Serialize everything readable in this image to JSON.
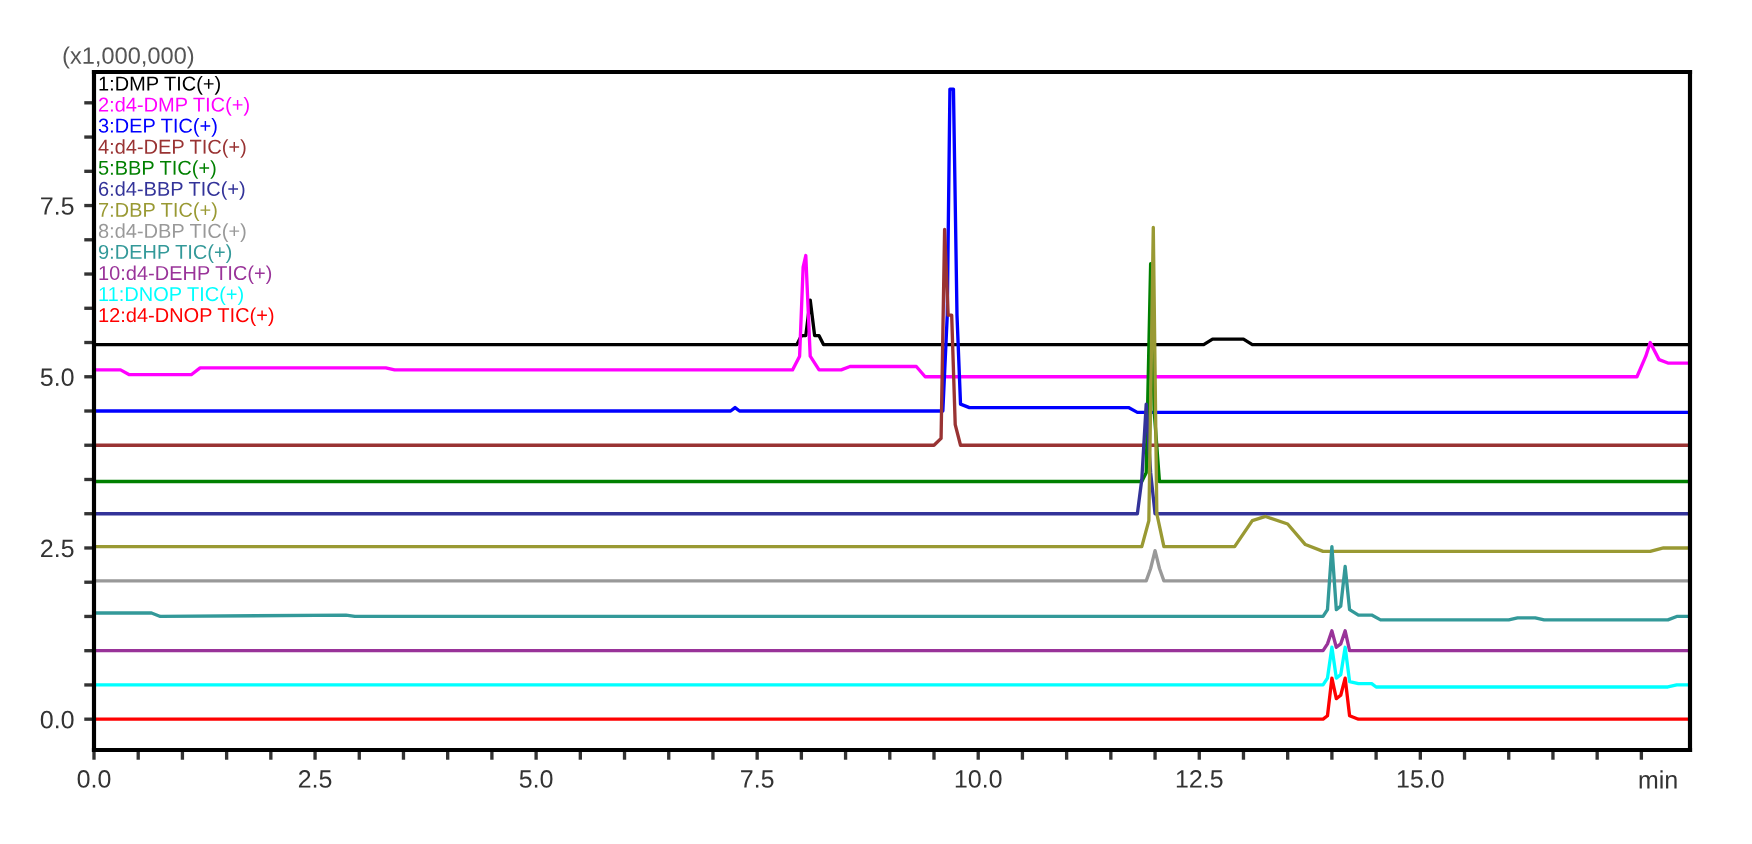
{
  "chart_data": {
    "type": "line",
    "xlabel": "min",
    "annotations": [
      "(x1,000,000)"
    ],
    "xlim": [
      0,
      18.05
    ],
    "ylim": [
      -0.45,
      9.45
    ],
    "xticks": [
      {
        "value": 0,
        "label": "0.0"
      },
      {
        "value": 0.5,
        "label": null
      },
      {
        "value": 1,
        "label": null
      },
      {
        "value": 1.5,
        "label": null
      },
      {
        "value": 2,
        "label": null
      },
      {
        "value": 2.5,
        "label": "2.5"
      },
      {
        "value": 3,
        "label": null
      },
      {
        "value": 3.5,
        "label": null
      },
      {
        "value": 4,
        "label": null
      },
      {
        "value": 4.5,
        "label": null
      },
      {
        "value": 5,
        "label": "5.0"
      },
      {
        "value": 5.5,
        "label": null
      },
      {
        "value": 6,
        "label": null
      },
      {
        "value": 6.5,
        "label": null
      },
      {
        "value": 7,
        "label": null
      },
      {
        "value": 7.5,
        "label": "7.5"
      },
      {
        "value": 8,
        "label": null
      },
      {
        "value": 8.5,
        "label": null
      },
      {
        "value": 9,
        "label": null
      },
      {
        "value": 9.5,
        "label": null
      },
      {
        "value": 10,
        "label": "10.0"
      },
      {
        "value": 10.5,
        "label": null
      },
      {
        "value": 11,
        "label": null
      },
      {
        "value": 11.5,
        "label": null
      },
      {
        "value": 12,
        "label": null
      },
      {
        "value": 12.5,
        "label": "12.5"
      },
      {
        "value": 13,
        "label": null
      },
      {
        "value": 13.5,
        "label": null
      },
      {
        "value": 14,
        "label": null
      },
      {
        "value": 14.5,
        "label": null
      },
      {
        "value": 15,
        "label": "15.0"
      },
      {
        "value": 15.5,
        "label": null
      },
      {
        "value": 16,
        "label": null
      },
      {
        "value": 16.5,
        "label": null
      },
      {
        "value": 17,
        "label": null
      },
      {
        "value": 17.5,
        "label": null
      }
    ],
    "yticks": [
      {
        "value": 0,
        "label": "0.0"
      },
      {
        "value": 0.5,
        "label": null
      },
      {
        "value": 1,
        "label": null
      },
      {
        "value": 1.5,
        "label": null
      },
      {
        "value": 2,
        "label": null
      },
      {
        "value": 2.5,
        "label": "2.5"
      },
      {
        "value": 3,
        "label": null
      },
      {
        "value": 3.5,
        "label": null
      },
      {
        "value": 4,
        "label": null
      },
      {
        "value": 4.5,
        "label": null
      },
      {
        "value": 5,
        "label": "5.0"
      },
      {
        "value": 5.5,
        "label": null
      },
      {
        "value": 6,
        "label": null
      },
      {
        "value": 6.5,
        "label": null
      },
      {
        "value": 7,
        "label": null
      },
      {
        "value": 7.5,
        "label": "7.5"
      },
      {
        "value": 8,
        "label": null
      },
      {
        "value": 8.5,
        "label": null
      },
      {
        "value": 9,
        "label": null
      }
    ],
    "grid": false,
    "legend": "top left",
    "marker": "none",
    "line_style": "solid",
    "series": [
      {
        "name": "1:DMP TIC(+)",
        "color": "#000000",
        "x": [
          0,
          7.95,
          8.0,
          8.05,
          8.1,
          8.15,
          8.2,
          8.25,
          12.55,
          12.65,
          13.0,
          13.1,
          18.05
        ],
        "values": [
          5.47,
          5.47,
          5.6,
          5.6,
          6.12,
          5.6,
          5.6,
          5.47,
          5.47,
          5.55,
          5.55,
          5.47,
          5.47
        ]
      },
      {
        "name": "2:d4-DMP TIC(+)",
        "color": "#ff00ff",
        "x": [
          0,
          0.3,
          0.4,
          1.1,
          1.2,
          3.3,
          3.4,
          7.9,
          7.98,
          8.02,
          8.05,
          8.1,
          8.2,
          8.45,
          8.55,
          9.3,
          9.4,
          17.45,
          17.55,
          17.6,
          17.7,
          17.8,
          18.05
        ],
        "values": [
          5.1,
          5.1,
          5.03,
          5.03,
          5.13,
          5.13,
          5.1,
          5.1,
          5.3,
          6.6,
          6.77,
          5.3,
          5.1,
          5.1,
          5.15,
          5.15,
          5.0,
          5.0,
          5.3,
          5.5,
          5.25,
          5.2,
          5.2
        ]
      },
      {
        "name": "3:DEP TIC(+)",
        "color": "#0000ff",
        "x": [
          0,
          7.2,
          7.25,
          7.3,
          9.6,
          9.65,
          9.68,
          9.72,
          9.76,
          9.8,
          9.9,
          11.7,
          11.8,
          18.05
        ],
        "values": [
          4.5,
          4.5,
          4.55,
          4.5,
          4.5,
          5.9,
          9.2,
          9.2,
          5.9,
          4.6,
          4.55,
          4.55,
          4.48,
          4.48
        ]
      },
      {
        "name": "4:d4-DEP TIC(+)",
        "color": "#993333",
        "x": [
          0,
          9.5,
          9.58,
          9.62,
          9.66,
          9.7,
          9.74,
          9.8,
          18.05
        ],
        "values": [
          4.0,
          4.0,
          4.1,
          7.15,
          5.9,
          5.9,
          4.3,
          4.0,
          4.0
        ]
      },
      {
        "name": "5:BBP TIC(+)",
        "color": "#008000",
        "x": [
          0,
          11.85,
          11.9,
          11.95,
          11.99,
          12.05,
          18.05
        ],
        "values": [
          3.47,
          3.47,
          3.6,
          6.65,
          4.5,
          3.47,
          3.47
        ]
      },
      {
        "name": "6:d4-BBP TIC(+)",
        "color": "#333399",
        "x": [
          0,
          11.8,
          11.85,
          11.9,
          11.95,
          12.0,
          18.05
        ],
        "values": [
          3.0,
          3.0,
          3.5,
          4.6,
          3.6,
          3.0,
          3.0
        ]
      },
      {
        "name": "7:DBP TIC(+)",
        "color": "#999933",
        "x": [
          0,
          11.85,
          11.93,
          11.98,
          12.02,
          12.1,
          12.9,
          13.1,
          13.25,
          13.5,
          13.7,
          13.9,
          17.6,
          17.75,
          18.05
        ],
        "values": [
          2.52,
          2.52,
          2.9,
          7.18,
          3.0,
          2.52,
          2.52,
          2.9,
          2.96,
          2.85,
          2.55,
          2.45,
          2.45,
          2.5,
          2.5
        ]
      },
      {
        "name": "8:d4-DBP TIC(+)",
        "color": "#999999",
        "x": [
          0,
          11.9,
          11.95,
          12.0,
          12.05,
          12.1,
          18.05
        ],
        "values": [
          2.02,
          2.02,
          2.2,
          2.46,
          2.2,
          2.02,
          2.02
        ]
      },
      {
        "name": "9:DEHP TIC(+)",
        "color": "#339999",
        "x": [
          0,
          0.65,
          0.75,
          2.85,
          2.95,
          13.9,
          13.95,
          14.0,
          14.05,
          14.1,
          14.15,
          14.2,
          14.3,
          14.45,
          14.55,
          16.0,
          16.1,
          16.3,
          16.4,
          17.8,
          17.9,
          18.05
        ],
        "values": [
          1.55,
          1.55,
          1.5,
          1.52,
          1.5,
          1.5,
          1.6,
          2.52,
          1.6,
          1.65,
          2.23,
          1.6,
          1.52,
          1.52,
          1.45,
          1.45,
          1.48,
          1.48,
          1.45,
          1.45,
          1.5,
          1.5
        ]
      },
      {
        "name": "10:d4-DEHP TIC(+)",
        "color": "#993399",
        "x": [
          0,
          13.9,
          13.95,
          14.0,
          14.05,
          14.1,
          14.15,
          14.2,
          14.3,
          18.05
        ],
        "values": [
          1.0,
          1.0,
          1.1,
          1.29,
          1.05,
          1.1,
          1.29,
          1.0,
          1.0,
          1.0
        ]
      },
      {
        "name": "11:DNOP TIC(+)",
        "color": "#00ffff",
        "x": [
          0,
          13.9,
          13.95,
          14.0,
          14.05,
          14.1,
          14.15,
          14.2,
          14.3,
          14.45,
          14.5,
          17.8,
          17.9,
          18.05
        ],
        "values": [
          0.5,
          0.5,
          0.6,
          1.05,
          0.6,
          0.65,
          1.05,
          0.55,
          0.52,
          0.52,
          0.47,
          0.47,
          0.5,
          0.5
        ]
      },
      {
        "name": "12:d4-DNOP TIC(+)",
        "color": "#ff0000",
        "x": [
          0,
          13.9,
          13.95,
          14.0,
          14.05,
          14.1,
          14.15,
          14.2,
          14.3,
          18.05
        ],
        "values": [
          0,
          0,
          0.05,
          0.6,
          0.3,
          0.35,
          0.6,
          0.05,
          0,
          0
        ]
      }
    ]
  }
}
